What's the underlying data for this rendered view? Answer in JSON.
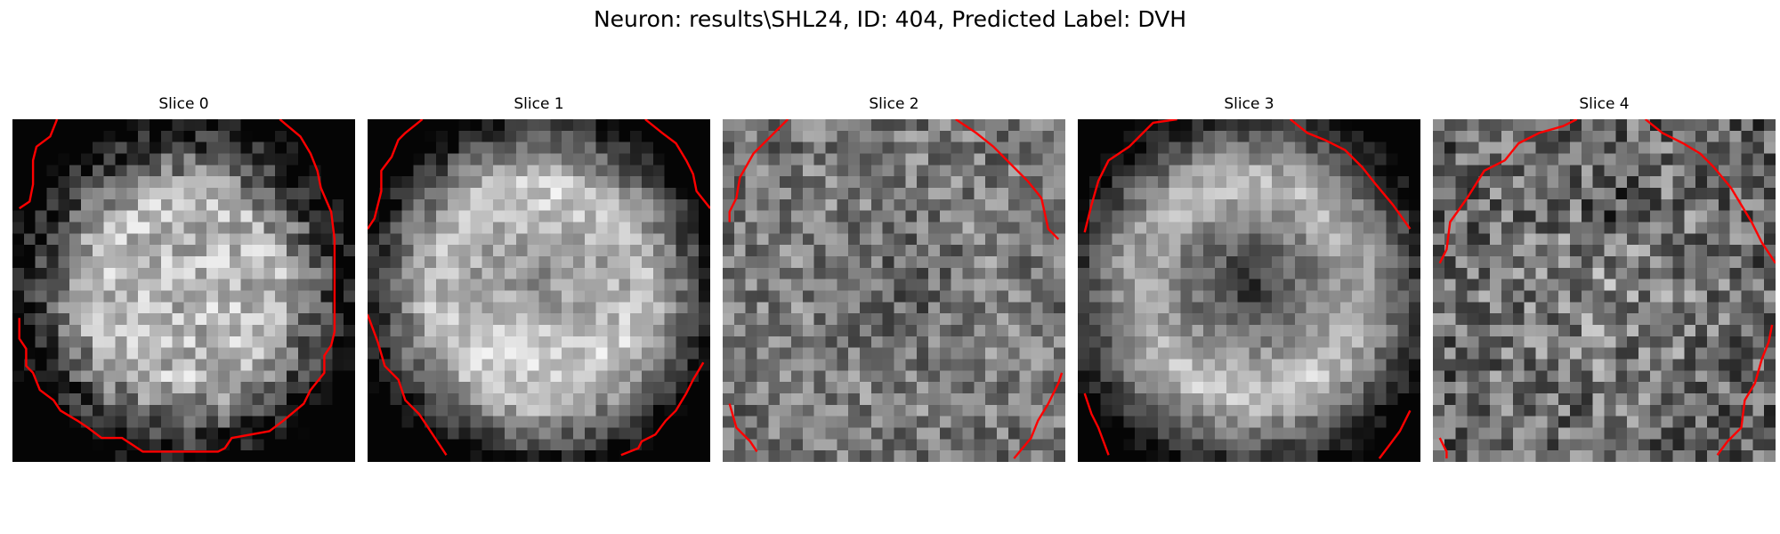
{
  "figure": {
    "title": "Neuron: results\\SHL24, ID: 404, Predicted Label: DVH"
  },
  "panels": [
    {
      "title": "Slice 0",
      "pattern": "bright-disk",
      "contour": [
        [
          [
            0.13,
            0.0
          ],
          [
            0.11,
            0.05
          ],
          [
            0.07,
            0.08
          ],
          [
            0.06,
            0.12
          ],
          [
            0.06,
            0.19
          ],
          [
            0.05,
            0.24
          ],
          [
            0.02,
            0.26
          ]
        ],
        [
          [
            0.78,
            0.0
          ],
          [
            0.84,
            0.05
          ],
          [
            0.87,
            0.1
          ],
          [
            0.89,
            0.15
          ],
          [
            0.9,
            0.2
          ],
          [
            0.93,
            0.27
          ],
          [
            0.94,
            0.35
          ],
          [
            0.94,
            0.62
          ],
          [
            0.93,
            0.66
          ],
          [
            0.91,
            0.69
          ],
          [
            0.91,
            0.74
          ],
          [
            0.87,
            0.79
          ],
          [
            0.85,
            0.83
          ],
          [
            0.79,
            0.88
          ],
          [
            0.75,
            0.91
          ],
          [
            0.64,
            0.93
          ],
          [
            0.62,
            0.96
          ],
          [
            0.6,
            0.97
          ],
          [
            0.38,
            0.97
          ],
          [
            0.35,
            0.95
          ],
          [
            0.32,
            0.93
          ],
          [
            0.26,
            0.93
          ],
          [
            0.22,
            0.9
          ],
          [
            0.19,
            0.88
          ],
          [
            0.14,
            0.85
          ],
          [
            0.12,
            0.82
          ],
          [
            0.08,
            0.79
          ],
          [
            0.06,
            0.74
          ],
          [
            0.04,
            0.72
          ],
          [
            0.04,
            0.67
          ],
          [
            0.02,
            0.64
          ],
          [
            0.02,
            0.58
          ]
        ]
      ]
    },
    {
      "title": "Slice 1",
      "pattern": "bright-ring-faint-center",
      "contour": [
        [
          [
            0.16,
            0.0
          ],
          [
            0.11,
            0.04
          ],
          [
            0.09,
            0.06
          ],
          [
            0.07,
            0.11
          ],
          [
            0.04,
            0.15
          ],
          [
            0.04,
            0.21
          ],
          [
            0.02,
            0.29
          ],
          [
            0.0,
            0.32
          ]
        ],
        [
          [
            0.81,
            0.0
          ],
          [
            0.86,
            0.04
          ],
          [
            0.9,
            0.07
          ],
          [
            0.93,
            0.12
          ],
          [
            0.95,
            0.16
          ],
          [
            0.96,
            0.21
          ],
          [
            1.0,
            0.26
          ]
        ],
        [
          [
            0.0,
            0.57
          ],
          [
            0.03,
            0.65
          ],
          [
            0.05,
            0.72
          ],
          [
            0.09,
            0.76
          ],
          [
            0.11,
            0.82
          ],
          [
            0.15,
            0.86
          ],
          [
            0.19,
            0.92
          ],
          [
            0.23,
            0.98
          ]
        ],
        [
          [
            0.74,
            0.98
          ],
          [
            0.79,
            0.96
          ],
          [
            0.8,
            0.94
          ],
          [
            0.84,
            0.92
          ],
          [
            0.87,
            0.88
          ],
          [
            0.9,
            0.85
          ],
          [
            0.93,
            0.8
          ],
          [
            0.95,
            0.76
          ],
          [
            0.98,
            0.71
          ]
        ]
      ]
    },
    {
      "title": "Slice 2",
      "pattern": "gray-center-dark",
      "contour": [
        [
          [
            0.19,
            0.0
          ],
          [
            0.14,
            0.05
          ],
          [
            0.09,
            0.1
          ],
          [
            0.05,
            0.17
          ],
          [
            0.04,
            0.23
          ],
          [
            0.02,
            0.27
          ],
          [
            0.02,
            0.3
          ]
        ],
        [
          [
            0.68,
            0.0
          ],
          [
            0.74,
            0.04
          ],
          [
            0.79,
            0.08
          ],
          [
            0.84,
            0.13
          ],
          [
            0.89,
            0.18
          ],
          [
            0.93,
            0.23
          ],
          [
            0.95,
            0.32
          ],
          [
            0.98,
            0.35
          ]
        ],
        [
          [
            0.02,
            0.83
          ],
          [
            0.04,
            0.9
          ],
          [
            0.08,
            0.94
          ],
          [
            0.1,
            0.97
          ]
        ],
        [
          [
            0.85,
            0.99
          ],
          [
            0.9,
            0.93
          ],
          [
            0.92,
            0.88
          ],
          [
            0.95,
            0.83
          ],
          [
            0.98,
            0.77
          ],
          [
            0.99,
            0.74
          ]
        ]
      ]
    },
    {
      "title": "Slice 3",
      "pattern": "bright-ring-dark-center",
      "contour": [
        [
          [
            0.29,
            0.0
          ],
          [
            0.22,
            0.01
          ],
          [
            0.15,
            0.08
          ],
          [
            0.09,
            0.12
          ],
          [
            0.06,
            0.18
          ],
          [
            0.04,
            0.25
          ],
          [
            0.02,
            0.33
          ]
        ],
        [
          [
            0.62,
            0.0
          ],
          [
            0.67,
            0.04
          ],
          [
            0.72,
            0.06
          ],
          [
            0.78,
            0.09
          ],
          [
            0.83,
            0.14
          ],
          [
            0.87,
            0.19
          ],
          [
            0.92,
            0.25
          ],
          [
            0.97,
            0.32
          ]
        ],
        [
          [
            0.02,
            0.8
          ],
          [
            0.04,
            0.86
          ],
          [
            0.06,
            0.9
          ],
          [
            0.09,
            0.98
          ]
        ],
        [
          [
            0.88,
            0.99
          ],
          [
            0.91,
            0.95
          ],
          [
            0.94,
            0.91
          ],
          [
            0.97,
            0.85
          ]
        ]
      ]
    },
    {
      "title": "Slice 4",
      "pattern": "gray-mottled",
      "contour": [
        [
          [
            0.42,
            0.0
          ],
          [
            0.38,
            0.02
          ],
          [
            0.31,
            0.04
          ],
          [
            0.25,
            0.07
          ],
          [
            0.21,
            0.12
          ],
          [
            0.15,
            0.15
          ],
          [
            0.1,
            0.23
          ],
          [
            0.05,
            0.3
          ],
          [
            0.04,
            0.38
          ],
          [
            0.02,
            0.42
          ]
        ],
        [
          [
            0.62,
            0.0
          ],
          [
            0.67,
            0.04
          ],
          [
            0.73,
            0.07
          ],
          [
            0.78,
            0.1
          ],
          [
            0.82,
            0.14
          ],
          [
            0.87,
            0.2
          ],
          [
            0.9,
            0.25
          ],
          [
            0.93,
            0.3
          ],
          [
            0.96,
            0.36
          ],
          [
            1.0,
            0.42
          ]
        ],
        [
          [
            0.02,
            0.93
          ],
          [
            0.04,
            0.97
          ],
          [
            0.04,
            0.99
          ]
        ],
        [
          [
            0.83,
            0.98
          ],
          [
            0.86,
            0.94
          ],
          [
            0.9,
            0.9
          ],
          [
            0.91,
            0.82
          ],
          [
            0.94,
            0.77
          ],
          [
            0.96,
            0.7
          ],
          [
            0.98,
            0.65
          ],
          [
            0.99,
            0.6
          ]
        ]
      ]
    }
  ],
  "colors": {
    "background": "#ffffff",
    "contour": "#ff0000",
    "text": "#000000"
  }
}
